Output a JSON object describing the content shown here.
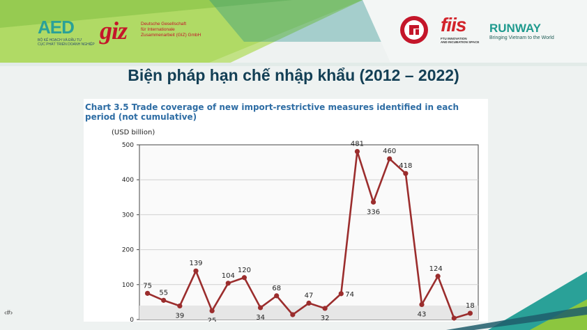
{
  "slide": {
    "title": "Biện pháp hạn chế nhập khẩu (2012 – 2022)",
    "page_number": "‹#›"
  },
  "logos": {
    "aed": {
      "mark": "AED",
      "subtitle_1": "Bộ Kế hoạch và Đầu tư",
      "subtitle_2": "Cục Phát triển Doanh nghiệp"
    },
    "giz": {
      "mark": "giz",
      "text_1": "Deutsche Gesellschaft",
      "text_2": "für Internationale",
      "text_3": "Zusammenarbeit (GIZ) GmbH"
    },
    "ftu": {
      "icon": "university-seal"
    },
    "fiis": {
      "mark": "fiis",
      "sub_1": "FTU INNOVATION",
      "sub_2": "AND INCUBATION SPACE"
    },
    "runway": {
      "mark": "RUNWAY",
      "tagline": "Bringing Vietnam to the World"
    }
  },
  "colors": {
    "series": "#9b2d2d",
    "title": "#133f55",
    "chart_title": "#2e6da4",
    "accent_green": "#8cc63f",
    "accent_teal": "#2aa198"
  },
  "chart_data": {
    "type": "line",
    "title": "Chart 3.5 Trade coverage of new import-restrictive measures identified in each period (not cumulative)",
    "ylabel": "(USD billion)",
    "xlabel": "",
    "ylim": [
      0,
      500
    ],
    "yticks": [
      0,
      100,
      200,
      300,
      400,
      500
    ],
    "grid": "horizontal",
    "series": [
      {
        "values": [
          75,
          55,
          39,
          139,
          25,
          104,
          120,
          34,
          68,
          14,
          47,
          32,
          74,
          481,
          336,
          460,
          418,
          43,
          124,
          4,
          18
        ]
      }
    ],
    "labels": [
      "75",
      "55",
      "39",
      "139",
      "25",
      "104",
      "120",
      "34",
      "68",
      "14",
      "47",
      "32",
      "74",
      "481",
      "336",
      "460",
      "418",
      "43",
      "124",
      "4",
      "18"
    ]
  }
}
